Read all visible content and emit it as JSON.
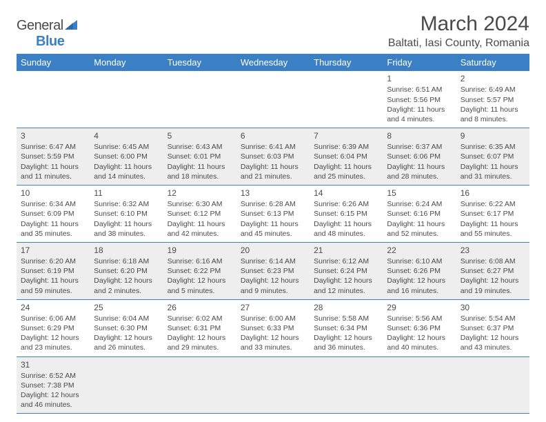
{
  "logo": {
    "text1": "General",
    "text2": "Blue"
  },
  "title": "March 2024",
  "location": "Baltati, Iasi County, Romania",
  "header_bg": "#3b7fc4",
  "weekdays": [
    "Sunday",
    "Monday",
    "Tuesday",
    "Wednesday",
    "Thursday",
    "Friday",
    "Saturday"
  ],
  "row_shading": [
    false,
    true,
    false,
    true,
    false,
    true
  ],
  "weeks": [
    [
      null,
      null,
      null,
      null,
      null,
      {
        "n": "1",
        "sr": "Sunrise: 6:51 AM",
        "ss": "Sunset: 5:56 PM",
        "dl": "Daylight: 11 hours and 4 minutes."
      },
      {
        "n": "2",
        "sr": "Sunrise: 6:49 AM",
        "ss": "Sunset: 5:57 PM",
        "dl": "Daylight: 11 hours and 8 minutes."
      }
    ],
    [
      {
        "n": "3",
        "sr": "Sunrise: 6:47 AM",
        "ss": "Sunset: 5:59 PM",
        "dl": "Daylight: 11 hours and 11 minutes."
      },
      {
        "n": "4",
        "sr": "Sunrise: 6:45 AM",
        "ss": "Sunset: 6:00 PM",
        "dl": "Daylight: 11 hours and 14 minutes."
      },
      {
        "n": "5",
        "sr": "Sunrise: 6:43 AM",
        "ss": "Sunset: 6:01 PM",
        "dl": "Daylight: 11 hours and 18 minutes."
      },
      {
        "n": "6",
        "sr": "Sunrise: 6:41 AM",
        "ss": "Sunset: 6:03 PM",
        "dl": "Daylight: 11 hours and 21 minutes."
      },
      {
        "n": "7",
        "sr": "Sunrise: 6:39 AM",
        "ss": "Sunset: 6:04 PM",
        "dl": "Daylight: 11 hours and 25 minutes."
      },
      {
        "n": "8",
        "sr": "Sunrise: 6:37 AM",
        "ss": "Sunset: 6:06 PM",
        "dl": "Daylight: 11 hours and 28 minutes."
      },
      {
        "n": "9",
        "sr": "Sunrise: 6:35 AM",
        "ss": "Sunset: 6:07 PM",
        "dl": "Daylight: 11 hours and 31 minutes."
      }
    ],
    [
      {
        "n": "10",
        "sr": "Sunrise: 6:34 AM",
        "ss": "Sunset: 6:09 PM",
        "dl": "Daylight: 11 hours and 35 minutes."
      },
      {
        "n": "11",
        "sr": "Sunrise: 6:32 AM",
        "ss": "Sunset: 6:10 PM",
        "dl": "Daylight: 11 hours and 38 minutes."
      },
      {
        "n": "12",
        "sr": "Sunrise: 6:30 AM",
        "ss": "Sunset: 6:12 PM",
        "dl": "Daylight: 11 hours and 42 minutes."
      },
      {
        "n": "13",
        "sr": "Sunrise: 6:28 AM",
        "ss": "Sunset: 6:13 PM",
        "dl": "Daylight: 11 hours and 45 minutes."
      },
      {
        "n": "14",
        "sr": "Sunrise: 6:26 AM",
        "ss": "Sunset: 6:15 PM",
        "dl": "Daylight: 11 hours and 48 minutes."
      },
      {
        "n": "15",
        "sr": "Sunrise: 6:24 AM",
        "ss": "Sunset: 6:16 PM",
        "dl": "Daylight: 11 hours and 52 minutes."
      },
      {
        "n": "16",
        "sr": "Sunrise: 6:22 AM",
        "ss": "Sunset: 6:17 PM",
        "dl": "Daylight: 11 hours and 55 minutes."
      }
    ],
    [
      {
        "n": "17",
        "sr": "Sunrise: 6:20 AM",
        "ss": "Sunset: 6:19 PM",
        "dl": "Daylight: 11 hours and 59 minutes."
      },
      {
        "n": "18",
        "sr": "Sunrise: 6:18 AM",
        "ss": "Sunset: 6:20 PM",
        "dl": "Daylight: 12 hours and 2 minutes."
      },
      {
        "n": "19",
        "sr": "Sunrise: 6:16 AM",
        "ss": "Sunset: 6:22 PM",
        "dl": "Daylight: 12 hours and 5 minutes."
      },
      {
        "n": "20",
        "sr": "Sunrise: 6:14 AM",
        "ss": "Sunset: 6:23 PM",
        "dl": "Daylight: 12 hours and 9 minutes."
      },
      {
        "n": "21",
        "sr": "Sunrise: 6:12 AM",
        "ss": "Sunset: 6:24 PM",
        "dl": "Daylight: 12 hours and 12 minutes."
      },
      {
        "n": "22",
        "sr": "Sunrise: 6:10 AM",
        "ss": "Sunset: 6:26 PM",
        "dl": "Daylight: 12 hours and 16 minutes."
      },
      {
        "n": "23",
        "sr": "Sunrise: 6:08 AM",
        "ss": "Sunset: 6:27 PM",
        "dl": "Daylight: 12 hours and 19 minutes."
      }
    ],
    [
      {
        "n": "24",
        "sr": "Sunrise: 6:06 AM",
        "ss": "Sunset: 6:29 PM",
        "dl": "Daylight: 12 hours and 23 minutes."
      },
      {
        "n": "25",
        "sr": "Sunrise: 6:04 AM",
        "ss": "Sunset: 6:30 PM",
        "dl": "Daylight: 12 hours and 26 minutes."
      },
      {
        "n": "26",
        "sr": "Sunrise: 6:02 AM",
        "ss": "Sunset: 6:31 PM",
        "dl": "Daylight: 12 hours and 29 minutes."
      },
      {
        "n": "27",
        "sr": "Sunrise: 6:00 AM",
        "ss": "Sunset: 6:33 PM",
        "dl": "Daylight: 12 hours and 33 minutes."
      },
      {
        "n": "28",
        "sr": "Sunrise: 5:58 AM",
        "ss": "Sunset: 6:34 PM",
        "dl": "Daylight: 12 hours and 36 minutes."
      },
      {
        "n": "29",
        "sr": "Sunrise: 5:56 AM",
        "ss": "Sunset: 6:36 PM",
        "dl": "Daylight: 12 hours and 40 minutes."
      },
      {
        "n": "30",
        "sr": "Sunrise: 5:54 AM",
        "ss": "Sunset: 6:37 PM",
        "dl": "Daylight: 12 hours and 43 minutes."
      }
    ],
    [
      {
        "n": "31",
        "sr": "Sunrise: 6:52 AM",
        "ss": "Sunset: 7:38 PM",
        "dl": "Daylight: 12 hours and 46 minutes."
      },
      null,
      null,
      null,
      null,
      null,
      null
    ]
  ]
}
